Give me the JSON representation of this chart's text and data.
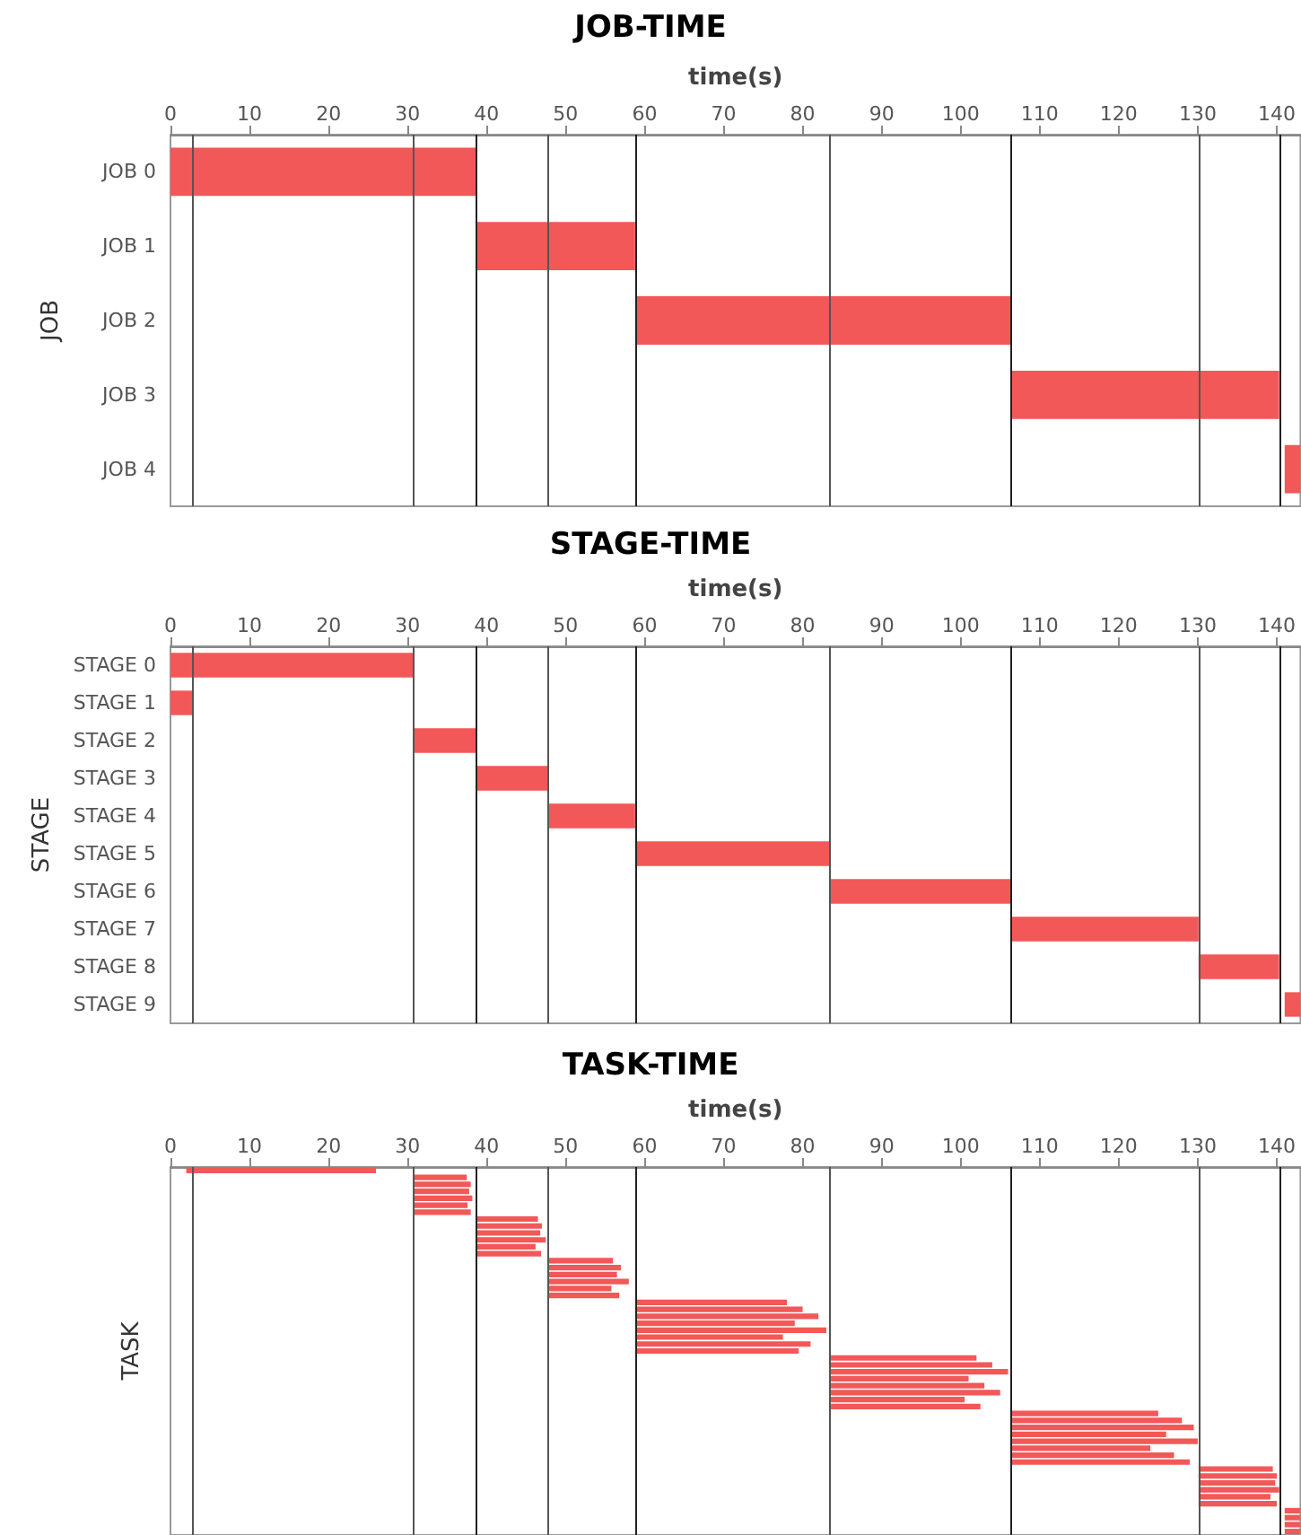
{
  "chart_data": [
    {
      "type": "bar",
      "orientation": "horizontal",
      "title": "JOB-TIME",
      "xlabel": "time(s)",
      "ylabel": "JOB",
      "categories": [
        "JOB 0",
        "JOB 1",
        "JOB 2",
        "JOB 3",
        "JOB 4"
      ],
      "values": [
        38.7,
        20.1,
        47.5,
        34,
        2
      ],
      "base": [
        0,
        38.7,
        58.8,
        106.3,
        141
      ],
      "color": "#f25858",
      "xlim": [
        0,
        143
      ],
      "xticks": [
        0,
        10,
        20,
        30,
        40,
        50,
        60,
        70,
        80,
        90,
        100,
        110,
        120,
        130,
        140
      ],
      "grid": false,
      "ref_lines": [
        {
          "axis": "x",
          "value": 2.8,
          "color": "#555555"
        },
        {
          "axis": "x",
          "value": 30.8,
          "color": "#555555"
        },
        {
          "axis": "x",
          "value": 38.7,
          "color": "#222222"
        },
        {
          "axis": "x",
          "value": 47.7,
          "color": "#555555"
        },
        {
          "axis": "x",
          "value": 58.8,
          "color": "#222222"
        },
        {
          "axis": "x",
          "value": 83.5,
          "color": "#555555"
        },
        {
          "axis": "x",
          "value": 106.3,
          "color": "#222222"
        },
        {
          "axis": "x",
          "value": 130.1,
          "color": "#555555"
        },
        {
          "axis": "x",
          "value": 140.3,
          "color": "#222222"
        }
      ]
    },
    {
      "type": "bar",
      "orientation": "horizontal",
      "title": "STAGE-TIME",
      "xlabel": "time(s)",
      "ylabel": "STAGE",
      "categories": [
        "STAGE 0",
        "STAGE 1",
        "STAGE 2",
        "STAGE 3",
        "STAGE 4",
        "STAGE 5",
        "STAGE 6",
        "STAGE 7",
        "STAGE 8",
        "STAGE 9"
      ],
      "values": [
        30.8,
        2.8,
        7.9,
        9,
        11.1,
        24.7,
        22.8,
        23.8,
        10.2,
        2
      ],
      "base": [
        0,
        0,
        30.8,
        38.7,
        47.7,
        58.8,
        83.5,
        106.3,
        130.1,
        141
      ],
      "color": "#f25858",
      "xlim": [
        0,
        143
      ],
      "xticks": [
        0,
        10,
        20,
        30,
        40,
        50,
        60,
        70,
        80,
        90,
        100,
        110,
        120,
        130,
        140
      ],
      "grid": false,
      "ref_lines": [
        {
          "axis": "x",
          "value": 2.8,
          "color": "#555555"
        },
        {
          "axis": "x",
          "value": 30.8,
          "color": "#555555"
        },
        {
          "axis": "x",
          "value": 38.7,
          "color": "#222222"
        },
        {
          "axis": "x",
          "value": 47.7,
          "color": "#555555"
        },
        {
          "axis": "x",
          "value": 58.8,
          "color": "#222222"
        },
        {
          "axis": "x",
          "value": 83.5,
          "color": "#555555"
        },
        {
          "axis": "x",
          "value": 106.3,
          "color": "#222222"
        },
        {
          "axis": "x",
          "value": 130.1,
          "color": "#555555"
        },
        {
          "axis": "x",
          "value": 140.3,
          "color": "#222222"
        }
      ]
    },
    {
      "type": "bar",
      "orientation": "horizontal",
      "title": "TASK-TIME",
      "xlabel": "time(s)",
      "ylabel": "TASK",
      "tick_labels": "x",
      "categories": [
        null,
        null,
        null,
        null,
        null,
        null,
        null,
        null,
        null,
        null,
        null,
        null,
        null,
        null,
        null,
        null,
        null,
        null,
        null,
        null,
        null,
        null,
        null,
        null,
        null,
        null,
        null,
        null,
        null,
        null,
        null,
        null,
        null,
        null,
        null,
        null,
        null,
        null,
        null,
        null,
        null,
        null,
        null,
        null,
        null,
        null,
        null,
        null,
        null,
        null,
        null,
        null,
        null
      ],
      "values": [
        24,
        6.7,
        7.2,
        7,
        7.4,
        6.8,
        7.2,
        7.8,
        8.3,
        8.1,
        8.8,
        7.5,
        8.2,
        8.3,
        9.3,
        8.8,
        10.3,
        8.1,
        9.1,
        19.2,
        21.2,
        23.2,
        20.2,
        24.2,
        18.7,
        22.2,
        20.7,
        18.5,
        20.5,
        22.5,
        17.5,
        19.5,
        21.5,
        17,
        19,
        18.7,
        21.7,
        23.2,
        19.7,
        23.7,
        17.7,
        20.7,
        22.7,
        9.4,
        9.9,
        9.7,
        10.2,
        9.1,
        9.9,
        2,
        2,
        2,
        2
      ],
      "base": [
        2,
        30.8,
        30.8,
        30.8,
        30.8,
        30.8,
        30.8,
        38.7,
        38.7,
        38.7,
        38.7,
        38.7,
        38.7,
        47.7,
        47.7,
        47.7,
        47.7,
        47.7,
        47.7,
        58.8,
        58.8,
        58.8,
        58.8,
        58.8,
        58.8,
        58.8,
        58.8,
        83.5,
        83.5,
        83.5,
        83.5,
        83.5,
        83.5,
        83.5,
        83.5,
        106.3,
        106.3,
        106.3,
        106.3,
        106.3,
        106.3,
        106.3,
        106.3,
        130.1,
        130.1,
        130.1,
        130.1,
        130.1,
        130.1,
        141,
        141,
        141,
        141
      ],
      "color": "#f25858",
      "xlim": [
        0,
        143
      ],
      "xticks": [
        0,
        10,
        20,
        30,
        40,
        50,
        60,
        70,
        80,
        90,
        100,
        110,
        120,
        130,
        140
      ],
      "grid": false,
      "ref_lines": [
        {
          "axis": "x",
          "value": 2.8,
          "color": "#555555"
        },
        {
          "axis": "x",
          "value": 30.8,
          "color": "#555555"
        },
        {
          "axis": "x",
          "value": 38.7,
          "color": "#222222"
        },
        {
          "axis": "x",
          "value": 47.7,
          "color": "#555555"
        },
        {
          "axis": "x",
          "value": 58.8,
          "color": "#222222"
        },
        {
          "axis": "x",
          "value": 83.5,
          "color": "#555555"
        },
        {
          "axis": "x",
          "value": 106.3,
          "color": "#222222"
        },
        {
          "axis": "x",
          "value": 130.1,
          "color": "#555555"
        },
        {
          "axis": "x",
          "value": 140.3,
          "color": "#222222"
        }
      ]
    }
  ]
}
